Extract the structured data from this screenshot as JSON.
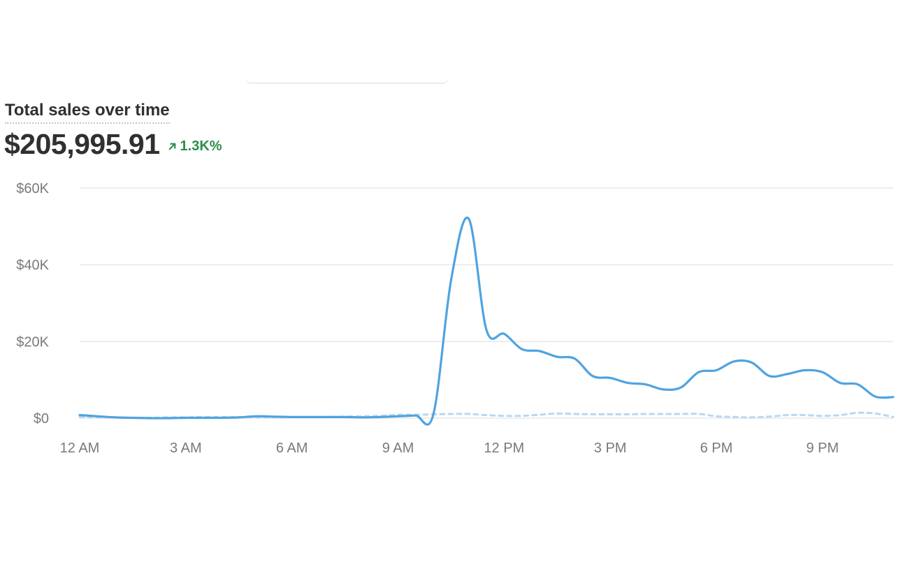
{
  "card": {
    "title": "Total sales over time",
    "total_value": "$205,995.91",
    "change": "1.3K%",
    "change_icon": "arrow-up-right-icon"
  },
  "colors": {
    "primary_series": "#4fa3e0",
    "comparison_series": "#b9d8f2",
    "positive_change": "#2f8c4c",
    "gridline": "#e8e8e8"
  },
  "chart_data": {
    "type": "line",
    "title": "Total sales over time",
    "xlabel": "",
    "ylabel": "",
    "xlim": [
      0,
      23
    ],
    "ylim": [
      0,
      60000
    ],
    "grid": true,
    "legend": "none",
    "x_ticks": [
      {
        "x": 0,
        "label": "12 AM"
      },
      {
        "x": 3,
        "label": "3 AM"
      },
      {
        "x": 6,
        "label": "6 AM"
      },
      {
        "x": 9,
        "label": "9 AM"
      },
      {
        "x": 12,
        "label": "12 PM"
      },
      {
        "x": 15,
        "label": "3 PM"
      },
      {
        "x": 18,
        "label": "6 PM"
      },
      {
        "x": 21,
        "label": "9 PM"
      }
    ],
    "y_ticks": [
      {
        "y": 0,
        "label": "$0"
      },
      {
        "y": 20000,
        "label": "$20K"
      },
      {
        "y": 40000,
        "label": "$40K"
      },
      {
        "y": 60000,
        "label": "$60K"
      }
    ],
    "x": [
      0,
      0.5,
      1,
      1.5,
      2,
      2.5,
      3,
      3.5,
      4,
      4.5,
      5,
      5.5,
      6,
      6.5,
      7,
      7.5,
      8,
      8.5,
      9,
      9.5,
      10,
      10.5,
      11,
      11.5,
      12,
      12.5,
      13,
      13.5,
      14,
      14.5,
      15,
      15.5,
      16,
      16.5,
      17,
      17.5,
      18,
      18.5,
      19,
      19.5,
      20,
      20.5,
      21,
      21.5,
      22,
      22.5,
      23
    ],
    "series": [
      {
        "style": "solid",
        "values": [
          800,
          500,
          200,
          100,
          0,
          0,
          100,
          100,
          100,
          200,
          500,
          400,
          300,
          300,
          300,
          300,
          200,
          300,
          500,
          700,
          1000,
          36000,
          52000,
          23000,
          22000,
          18000,
          17500,
          16000,
          15500,
          11000,
          10500,
          9200,
          8800,
          7500,
          8000,
          12000,
          12500,
          14800,
          14500,
          11000,
          11500,
          12500,
          12000,
          9200,
          8800,
          5600,
          5500
        ]
      },
      {
        "style": "dashed",
        "values": [
          300,
          200,
          200,
          100,
          100,
          200,
          200,
          300,
          300,
          300,
          200,
          200,
          300,
          300,
          300,
          400,
          500,
          600,
          900,
          900,
          1000,
          1100,
          1100,
          800,
          600,
          600,
          900,
          1200,
          1100,
          1000,
          1000,
          1000,
          1100,
          1100,
          1100,
          1100,
          500,
          300,
          200,
          400,
          800,
          800,
          600,
          800,
          1400,
          1200,
          300
        ]
      }
    ]
  }
}
